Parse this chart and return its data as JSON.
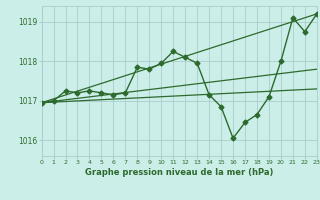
{
  "title": "Graphe pression niveau de la mer (hPa)",
  "background_color": "#cceee8",
  "grid_color": "#aacccc",
  "line_color": "#2d6a2d",
  "xlim": [
    0,
    23
  ],
  "ylim": [
    1015.6,
    1019.4
  ],
  "yticks": [
    1016,
    1017,
    1018,
    1019
  ],
  "xticks": [
    0,
    1,
    2,
    3,
    4,
    5,
    6,
    7,
    8,
    9,
    10,
    11,
    12,
    13,
    14,
    15,
    16,
    17,
    18,
    19,
    20,
    21,
    22,
    23
  ],
  "series": [
    {
      "x": [
        0,
        1,
        2,
        3,
        4,
        5,
        6,
        7,
        8,
        9,
        10,
        11,
        12,
        13,
        14,
        15,
        16,
        17,
        18,
        19,
        20,
        21,
        22,
        23
      ],
      "y": [
        1016.95,
        1017.0,
        1017.25,
        1017.2,
        1017.25,
        1017.2,
        1017.15,
        1017.2,
        1017.85,
        1017.8,
        1017.95,
        1018.25,
        1018.1,
        1017.95,
        1017.15,
        1016.85,
        1016.05,
        1016.45,
        1016.65,
        1017.1,
        1018.0,
        1019.1,
        1018.75,
        1019.2
      ],
      "marker": "D",
      "markersize": 2.5,
      "linewidth": 1.0,
      "has_markers": true
    },
    {
      "x": [
        0,
        23
      ],
      "y": [
        1016.95,
        1019.2
      ],
      "linewidth": 0.9,
      "has_markers": false
    },
    {
      "x": [
        0,
        23
      ],
      "y": [
        1016.95,
        1017.8
      ],
      "linewidth": 0.9,
      "has_markers": false
    },
    {
      "x": [
        0,
        23
      ],
      "y": [
        1016.95,
        1017.3
      ],
      "linewidth": 0.9,
      "has_markers": false
    }
  ]
}
